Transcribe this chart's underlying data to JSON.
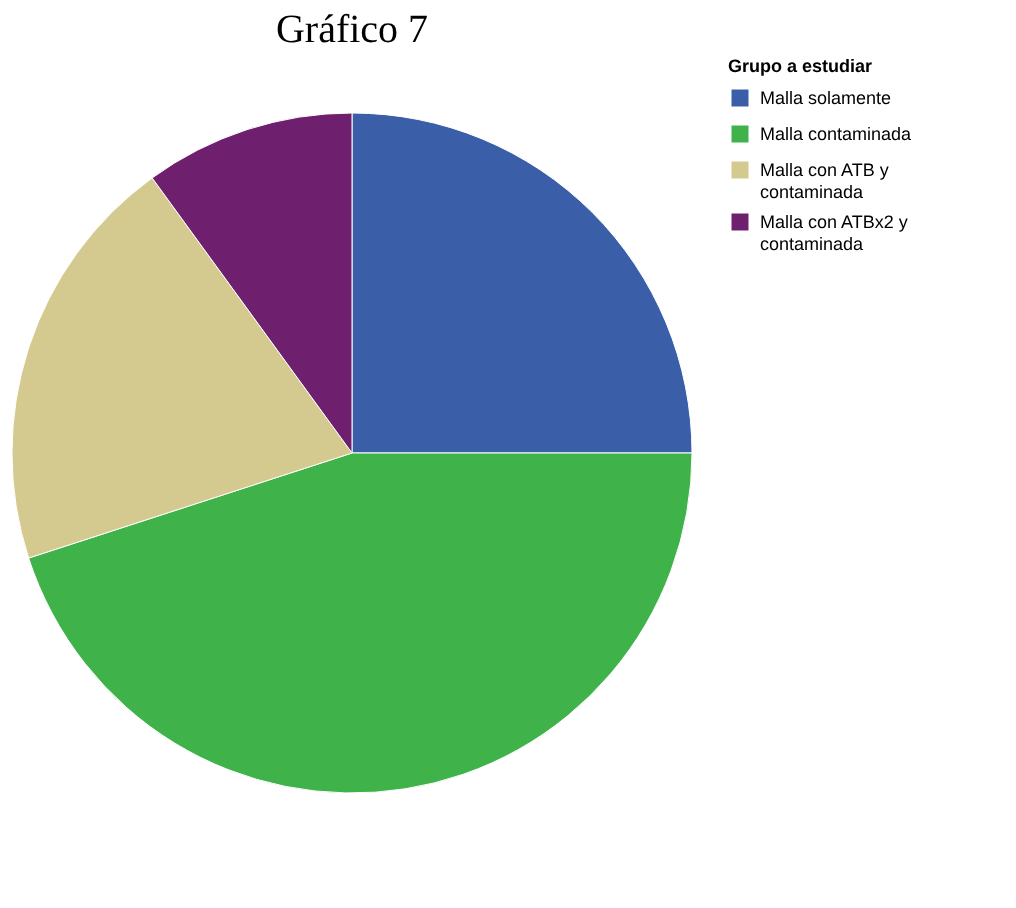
{
  "chart_data": {
    "type": "pie",
    "title": "Gráfico 7",
    "legend_title": "Grupo a estudiar",
    "categories": [
      "Malla solamente",
      "Malla contaminada",
      "Malla con ATB y contaminada",
      "Malla con ATBx2 y contaminada"
    ],
    "values": [
      25,
      45,
      20,
      10
    ],
    "colors": [
      "#3a5fa8",
      "#3fb34a",
      "#d4c98f",
      "#6e1f6e"
    ],
    "legend": "top right"
  }
}
